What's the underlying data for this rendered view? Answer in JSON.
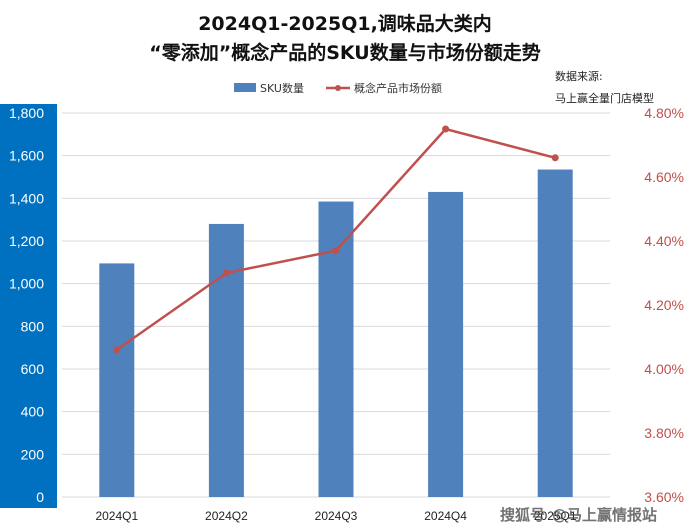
{
  "chart_data": {
    "type": "bar+line",
    "title_line1": "2024Q1-2025Q1,调味品大类内",
    "title_line2": "“零添加”概念产品的SKU数量与市场份额走势",
    "categories": [
      "2024Q1",
      "2024Q2",
      "2024Q3",
      "2024Q4",
      "2025Q1"
    ],
    "series": [
      {
        "name": "SKU数量",
        "type": "bar",
        "axis": "left",
        "color": "#4f81bd",
        "values": [
          1095,
          1280,
          1385,
          1430,
          1535
        ]
      },
      {
        "name": "概念产品市场份额",
        "type": "line",
        "axis": "right",
        "color": "#c0504d",
        "values": [
          4.06,
          4.3,
          4.37,
          4.75,
          4.66
        ]
      }
    ],
    "y_left": {
      "ylim": [
        0,
        1800
      ],
      "ticks": [
        "0",
        "200",
        "400",
        "600",
        "800",
        "1,000",
        "1,200",
        "1,400",
        "1,600",
        "1,800"
      ]
    },
    "y_right": {
      "ylim": [
        3.6,
        4.8
      ],
      "ticks": [
        "3.60%",
        "3.80%",
        "4.00%",
        "4.20%",
        "4.40%",
        "4.60%",
        "4.80%"
      ]
    },
    "grid": true,
    "legend_position": "top-center",
    "source_note": [
      "数据来源:",
      "马上赢全量门店模型"
    ]
  },
  "watermark": {
    "left": "搜狐号",
    "right": "@马上赢情报站"
  },
  "colors": {
    "bar": "#4f81bd",
    "line": "#c0504d",
    "axis_band": "#0070c0",
    "grid": "#d9d9d9"
  }
}
